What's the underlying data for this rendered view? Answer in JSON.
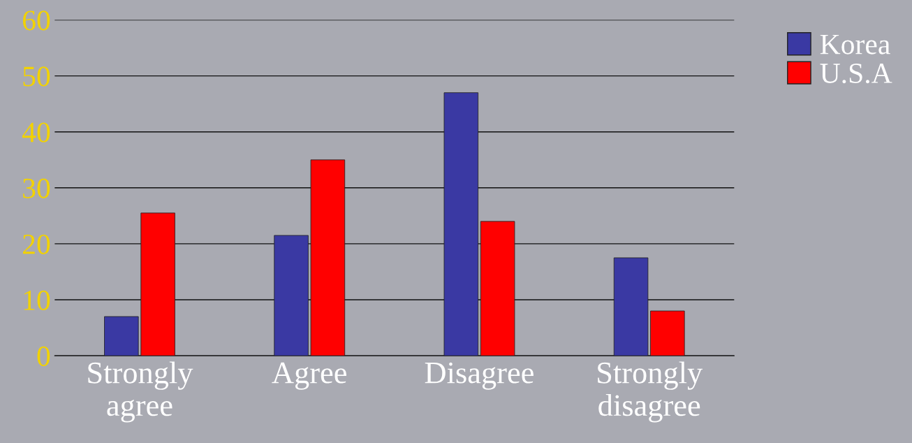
{
  "chart_data": {
    "type": "bar",
    "categories": [
      "Strongly agree",
      "Agree",
      "Disagree",
      "Strongly disagree"
    ],
    "series": [
      {
        "name": "Korea",
        "color": "#3a39a3",
        "values": [
          7,
          21.5,
          47,
          17.5
        ]
      },
      {
        "name": "U.S.A",
        "color": "#ff0000",
        "values": [
          25.5,
          35,
          24,
          8
        ]
      }
    ],
    "ylim": [
      0,
      60
    ],
    "yticks": [
      0,
      10,
      20,
      30,
      40,
      50,
      60
    ],
    "grid": "y",
    "legend": "top right"
  }
}
